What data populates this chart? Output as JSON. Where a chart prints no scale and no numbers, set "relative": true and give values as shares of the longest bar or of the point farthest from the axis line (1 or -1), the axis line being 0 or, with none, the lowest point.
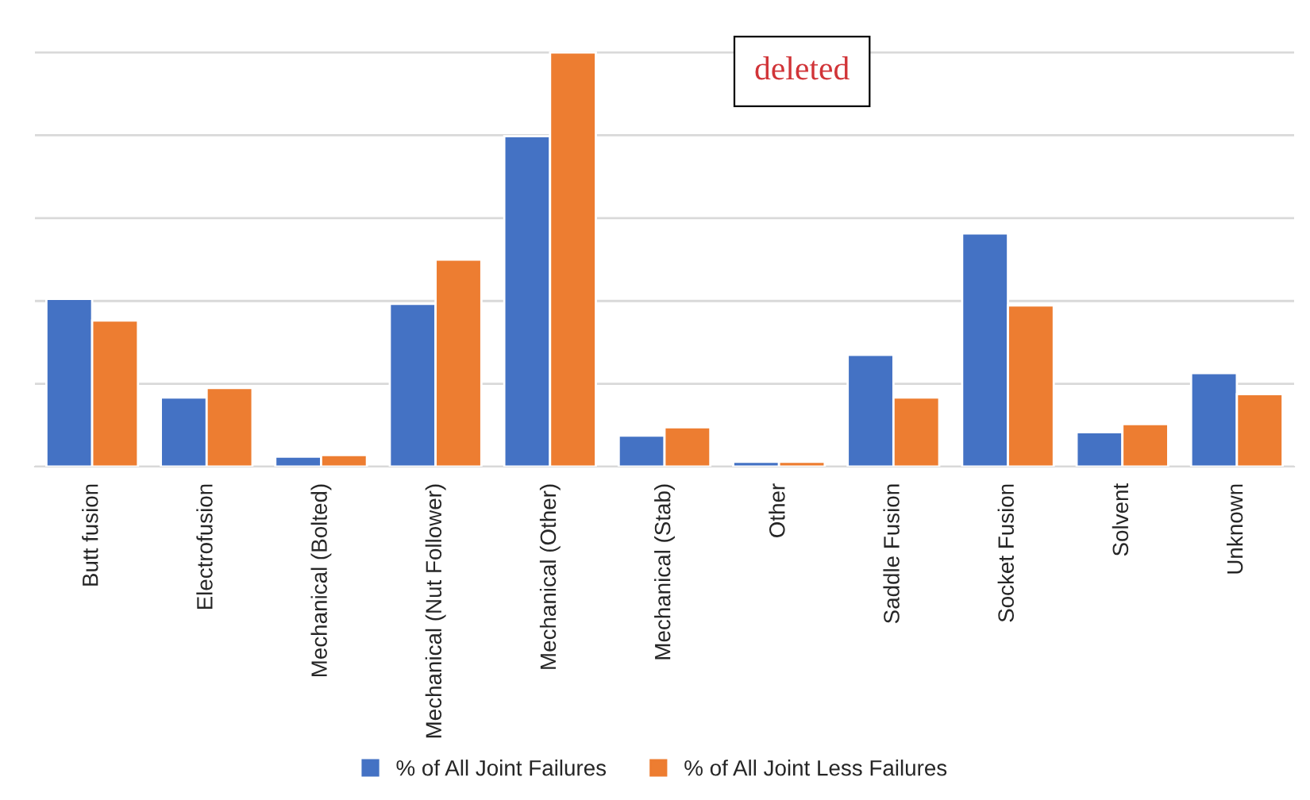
{
  "chart_data": {
    "type": "bar",
    "relative": true,
    "categories": [
      "Butt fusion",
      "Electrofusion",
      "Mechanical (Bolted)",
      "Mechanical (Nut Follower)",
      "Mechanical (Other)",
      "Mechanical (Stab)",
      "Other",
      "Saddle Fusion",
      "Socket Fusion",
      "Solvent",
      "Unknown"
    ],
    "series": [
      {
        "name": "% of All Joint Failures",
        "color": "#4472c4",
        "values": [
          0.405,
          0.167,
          0.024,
          0.393,
          0.798,
          0.075,
          0.012,
          0.27,
          0.563,
          0.083,
          0.226
        ]
      },
      {
        "name": "% of All Joint Less Failures",
        "color": "#ed7d31",
        "values": [
          0.353,
          0.19,
          0.028,
          0.5,
          1.0,
          0.095,
          0.012,
          0.167,
          0.389,
          0.103,
          0.175
        ]
      }
    ],
    "annotations": [
      "deleted"
    ],
    "grid": "y",
    "legend": "bottom"
  }
}
